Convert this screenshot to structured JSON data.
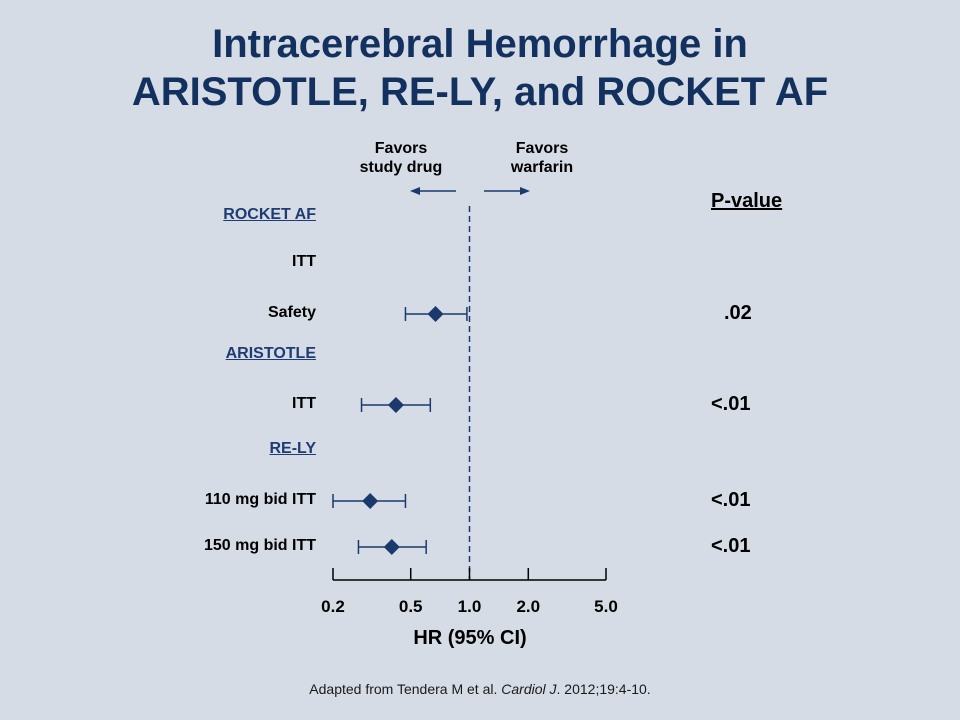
{
  "title": {
    "line1": "Intracerebral Hemorrhage in",
    "line2": "ARISTOTLE, RE-LY, and ROCKET AF"
  },
  "direction_labels": {
    "left": {
      "line1": "Favors",
      "line2": "study drug"
    },
    "right": {
      "line1": "Favors",
      "line2": "warfarin"
    }
  },
  "pvalue_header": "P-value",
  "source": {
    "prefix": "Adapted from Tendera M et al. ",
    "journal": "Cardiol J",
    "suffix": ". 2012;19:4-10."
  },
  "chart_data": {
    "type": "forest",
    "xlabel": "HR (95% CI)",
    "xscale": "log",
    "xlim": [
      0.2,
      5.0
    ],
    "xticks": [
      "0.2",
      "0.5",
      "1.0",
      "2.0",
      "5.0"
    ],
    "xtick_values": [
      0.2,
      0.5,
      1.0,
      2.0,
      5.0
    ],
    "reference_line": 1.0,
    "colors": {
      "marker": "#1a3a6e",
      "reference_line": "#1a3a6e",
      "section": "#1f3b73"
    },
    "rows": [
      {
        "label": "ROCKET AF",
        "section": true
      },
      {
        "label": "ITT",
        "section": false,
        "hr": null,
        "lo": null,
        "hi": null,
        "p": ""
      },
      {
        "label": "Safety",
        "section": false,
        "hr": 0.67,
        "lo": 0.47,
        "hi": 0.97,
        "p": ".02"
      },
      {
        "label": "ARISTOTLE",
        "section": true
      },
      {
        "label": "ITT",
        "section": false,
        "hr": 0.42,
        "lo": 0.28,
        "hi": 0.63,
        "p": "<.01"
      },
      {
        "label": "RE-LY",
        "section": true
      },
      {
        "label": "110 mg bid ITT",
        "section": false,
        "hr": 0.31,
        "lo": 0.2,
        "hi": 0.47,
        "p": "<.01"
      },
      {
        "label": "150 mg bid ITT",
        "section": false,
        "hr": 0.4,
        "lo": 0.27,
        "hi": 0.6,
        "p": "<.01"
      }
    ]
  }
}
